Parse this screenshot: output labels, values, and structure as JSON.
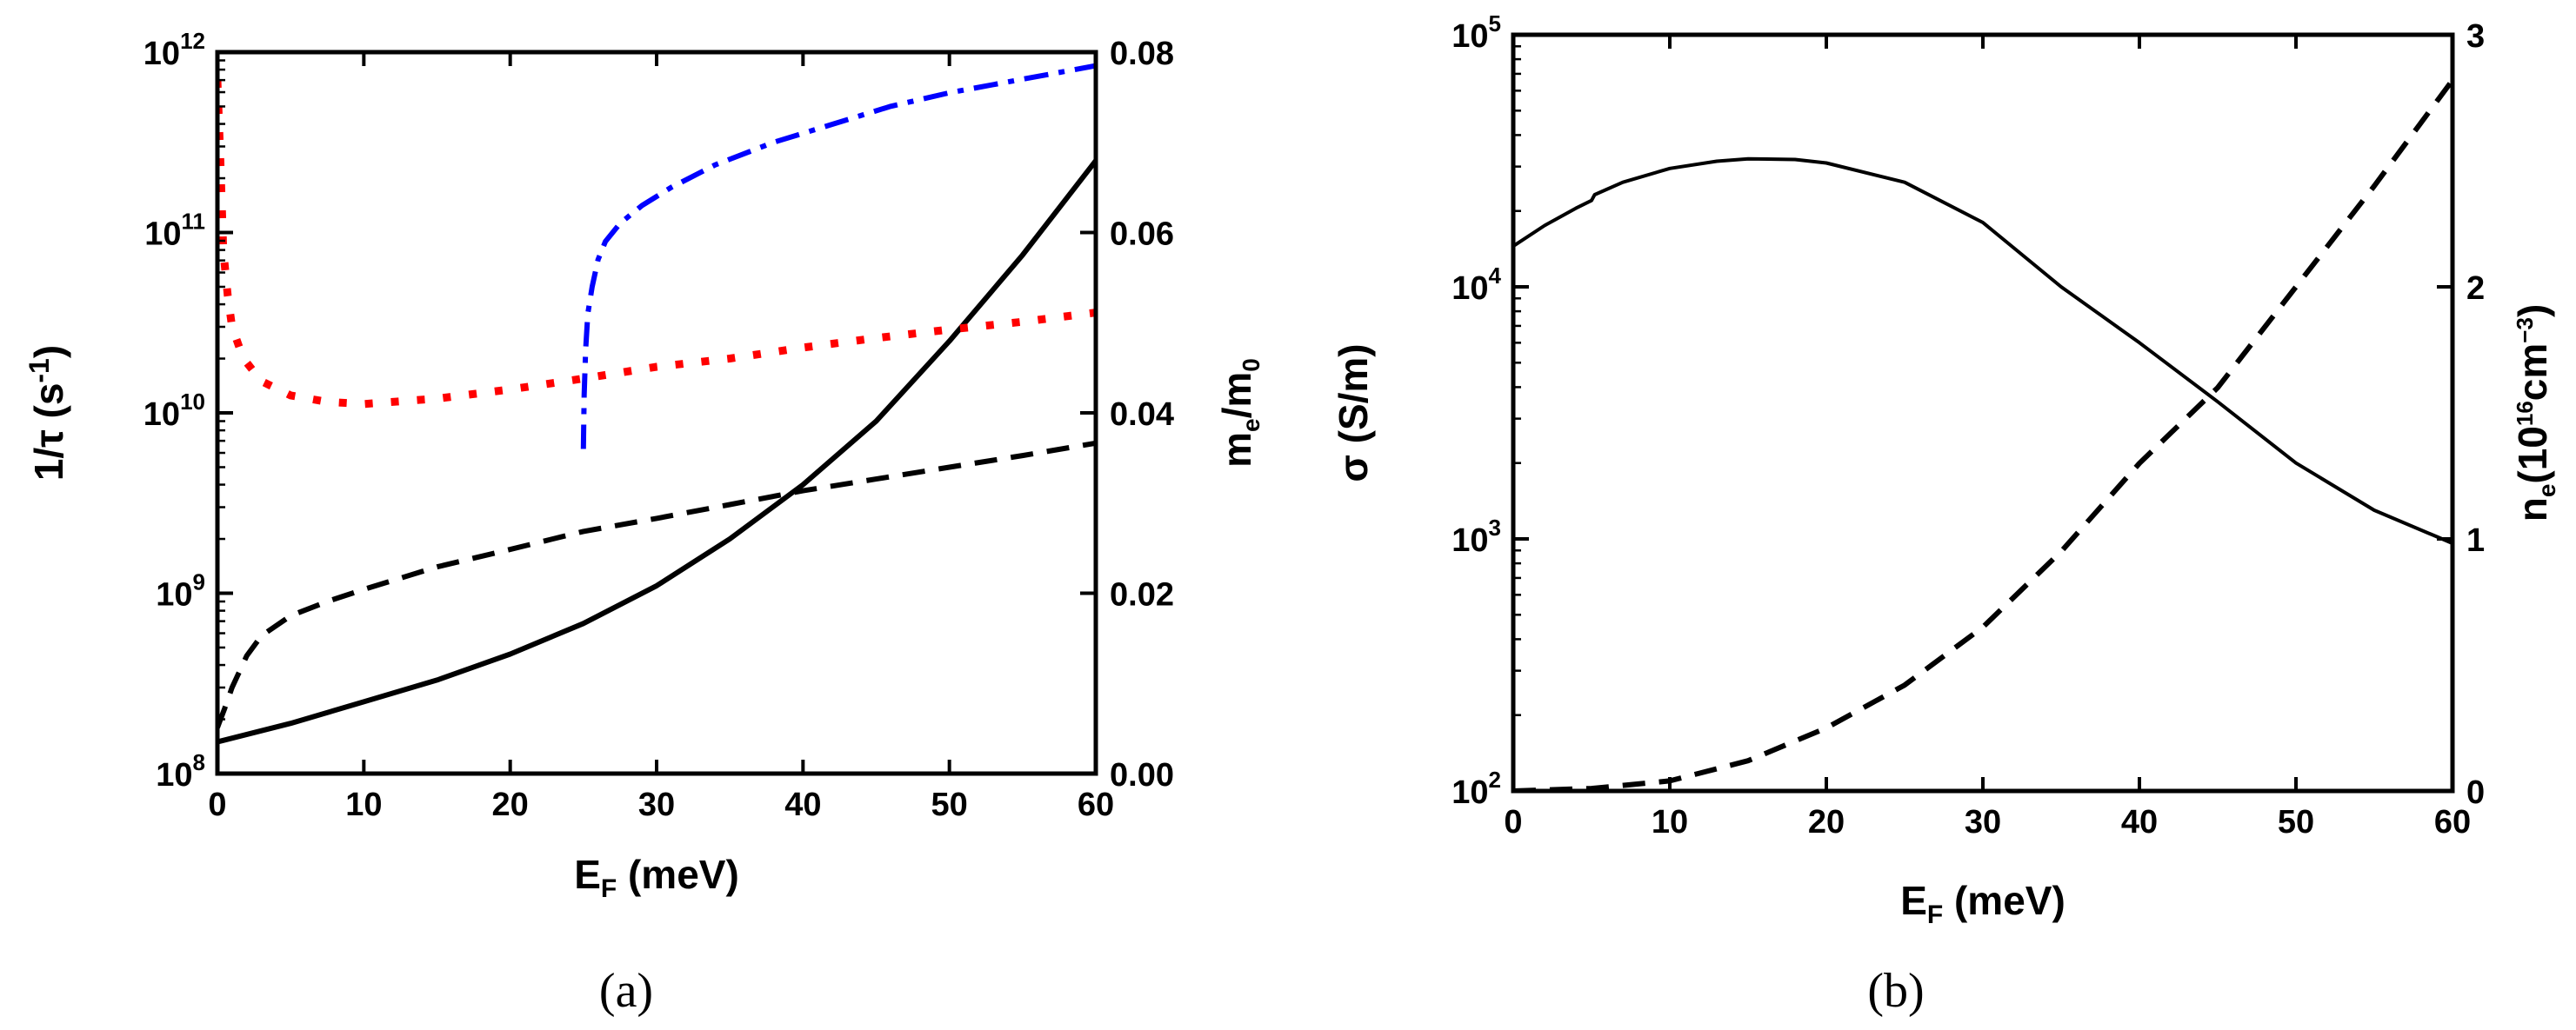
{
  "chart_data": [
    {
      "type": "line",
      "panel_label": "(a)",
      "xlabel": {
        "main": "E",
        "sub": "F",
        "rest": " (meV)"
      },
      "ylabel_left": {
        "main": "1/τ (s",
        "sup": "-1",
        "rest": ")"
      },
      "ylabel_right": {
        "main": "m",
        "sub": "e",
        "mid": "/m",
        "sub2": "0"
      },
      "xlim": [
        0,
        60
      ],
      "ylim_left": [
        100000000.0,
        1000000000000.0
      ],
      "yscale_left": "log",
      "ylim_right": [
        0.0,
        0.08
      ],
      "xticks": [
        "0",
        "10",
        "20",
        "30",
        "40",
        "50",
        "60"
      ],
      "yticks_left": [
        {
          "base": "10",
          "exp": "8",
          "value": 100000000.0
        },
        {
          "base": "10",
          "exp": "9",
          "value": 1000000000.0
        },
        {
          "base": "10",
          "exp": "10",
          "value": 10000000000.0
        },
        {
          "base": "10",
          "exp": "11",
          "value": 100000000000.0
        },
        {
          "base": "10",
          "exp": "12",
          "value": 1000000000000.0
        }
      ],
      "yticks_right": [
        "0.00",
        "0.02",
        "0.04",
        "0.06",
        "0.08"
      ],
      "series": [
        {
          "name": "solid-black",
          "axis": "left",
          "color": "#000000",
          "style": "solid",
          "x": [
            0,
            5,
            10,
            15,
            20,
            25,
            30,
            35,
            40,
            45,
            50,
            55,
            60
          ],
          "y": [
            150000000.0,
            190000000.0,
            250000000.0,
            330000000.0,
            460000000.0,
            680000000.0,
            1100000000.0,
            2000000000.0,
            4000000000.0,
            9000000000.0,
            25000000000.0,
            75000000000.0,
            250000000000.0
          ]
        },
        {
          "name": "dashed-black",
          "axis": "left",
          "color": "#000000",
          "style": "dashed",
          "x": [
            0,
            0.5,
            1,
            2,
            3,
            5,
            7.5,
            10,
            15,
            20,
            25,
            30,
            35,
            40,
            45,
            50,
            55,
            60
          ],
          "y": [
            180000000.0,
            230000000.0,
            300000000.0,
            450000000.0,
            580000000.0,
            750000000.0,
            900000000.0,
            1050000000.0,
            1400000000.0,
            1750000000.0,
            2200000000.0,
            2600000000.0,
            3100000000.0,
            3700000000.0,
            4300000000.0,
            5000000000.0,
            5800000000.0,
            6800000000.0
          ]
        },
        {
          "name": "dotted-red",
          "axis": "left",
          "color": "#ff0000",
          "style": "dotted",
          "x": [
            0,
            0.2,
            0.4,
            0.7,
            1,
            1.5,
            2,
            3,
            5,
            7.5,
            10,
            15,
            20,
            25,
            30,
            35,
            40,
            45,
            50,
            55,
            60
          ],
          "y": [
            700000000000.0,
            250000000000.0,
            80000000000.0,
            45000000000.0,
            30000000000.0,
            23000000000.0,
            19000000000.0,
            15000000000.0,
            12500000000.0,
            11500000000.0,
            11200000000.0,
            12000000000.0,
            13500000000.0,
            15500000000.0,
            18000000000.0,
            20000000000.0,
            23000000000.0,
            26000000000.0,
            29000000000.0,
            32000000000.0,
            36000000000.0
          ]
        },
        {
          "name": "dashdot-blue",
          "axis": "right",
          "color": "#0000ff",
          "style": "dashdot",
          "x": [
            25.0,
            25.05,
            25.15,
            25.3,
            25.6,
            26,
            26.5,
            27.5,
            29,
            31,
            34,
            38,
            42,
            46,
            50,
            55,
            60
          ],
          "y": [
            0.036,
            0.042,
            0.047,
            0.051,
            0.054,
            0.057,
            0.059,
            0.061,
            0.063,
            0.065,
            0.0675,
            0.07,
            0.072,
            0.074,
            0.0755,
            0.077,
            0.0785
          ]
        }
      ]
    },
    {
      "type": "line",
      "panel_label": "(b)",
      "xlabel": {
        "main": "E",
        "sub": "F",
        "rest": " (meV)"
      },
      "ylabel_left": {
        "main": "σ (S/m)"
      },
      "ylabel_right": {
        "main": "n",
        "sub": "e",
        "mid": "(10",
        "sup": "16",
        "mid2": "cm",
        "sup2": "−3",
        "rest": ")"
      },
      "xlim": [
        0,
        60
      ],
      "ylim_left": [
        100,
        100000
      ],
      "yscale_left": "log",
      "ylim_right": [
        0,
        3
      ],
      "xticks": [
        "0",
        "10",
        "20",
        "30",
        "40",
        "50",
        "60"
      ],
      "yticks_left": [
        {
          "base": "10",
          "exp": "2",
          "value": 100
        },
        {
          "base": "10",
          "exp": "3",
          "value": 1000
        },
        {
          "base": "10",
          "exp": "4",
          "value": 10000
        },
        {
          "base": "10",
          "exp": "5",
          "value": 100000
        }
      ],
      "yticks_right": [
        "0",
        "1",
        "2",
        "3"
      ],
      "series": [
        {
          "name": "solid-black",
          "axis": "left",
          "color": "#000000",
          "style": "solid",
          "x": [
            0,
            2,
            4,
            5,
            5.2,
            7,
            10,
            13,
            15,
            18,
            20,
            25,
            30,
            35,
            40,
            45,
            50,
            55,
            60
          ],
          "y": [
            14500,
            17500,
            20500,
            22000,
            23200,
            26000,
            29500,
            31500,
            32200,
            32000,
            31000,
            26000,
            18000,
            10000,
            6000,
            3500,
            2000,
            1300,
            960
          ]
        },
        {
          "name": "dashed-black",
          "axis": "right",
          "color": "#000000",
          "style": "dashed",
          "x": [
            0,
            5,
            10,
            15,
            20,
            25,
            30,
            35,
            40,
            45,
            50,
            55,
            60
          ],
          "y": [
            0,
            0.01,
            0.04,
            0.12,
            0.25,
            0.42,
            0.65,
            0.95,
            1.3,
            1.6,
            2.0,
            2.4,
            2.82
          ]
        }
      ]
    }
  ]
}
